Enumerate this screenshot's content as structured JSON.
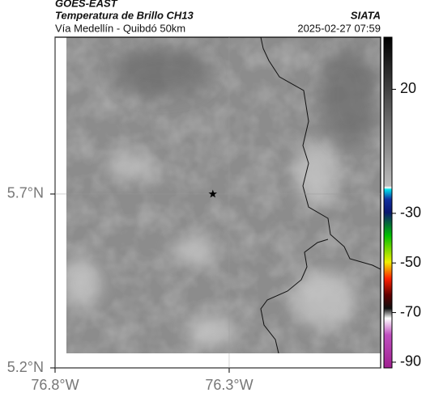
{
  "header": {
    "source": "GOES-EAST",
    "product": "Temperatura de Brillo CH13",
    "route": "Vía Medellín - Quibdó 50km",
    "agency": "SIATA",
    "datetime": "2025-02-27 07:59"
  },
  "map": {
    "lonlim": [
      -76.8,
      -75.865
    ],
    "latlim": [
      5.2,
      6.151
    ],
    "lonticks": [
      {
        "value": -76.8,
        "label": "76.8°W"
      },
      {
        "value": -76.3,
        "label": "76.3°W"
      }
    ],
    "latticks": [
      {
        "value": 5.7,
        "label": "5.7°N"
      },
      {
        "value": 5.2,
        "label": "5.2°N"
      }
    ],
    "marker": {
      "lon": -76.347,
      "lat": 5.7
    }
  },
  "colorbar": {
    "clim": [
      -92.3,
      41
    ],
    "ticks": [
      20,
      -30,
      -50,
      -70,
      -90
    ]
  }
}
